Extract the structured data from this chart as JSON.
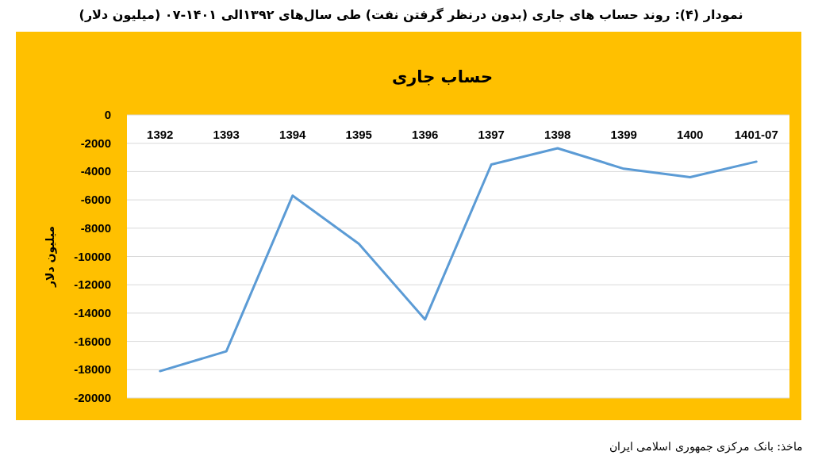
{
  "chart_data": {
    "type": "line",
    "title": "نمودار (۴): روند حساب های جاری (بدون درنظر گرفتن نفت) طی سال‌های ۱۳۹۲الی ۱۴۰۱-۰۷ (میلیون دلار)",
    "subtitle": "حساب جاری",
    "ylabel": "میلیون دلار",
    "annotations": [
      "ماخذ: بانک مرکزی جمهوری اسلامی ایران"
    ],
    "categories": [
      "1392",
      "1393",
      "1394",
      "1395",
      "1396",
      "1397",
      "1398",
      "1399",
      "1400",
      "1401-07"
    ],
    "series": [
      {
        "color": "#5b9bd5",
        "values": [
          -18100,
          -16700,
          -5700,
          -9100,
          -14450,
          -3500,
          -2350,
          -3800,
          -4400,
          -3300
        ]
      }
    ],
    "ylim": [
      -20000,
      0
    ],
    "yticks": [
      0,
      -2000,
      -4000,
      -6000,
      -8000,
      -10000,
      -12000,
      -14000,
      -16000,
      -18000,
      -20000
    ],
    "grid": "y",
    "marker": "none"
  }
}
